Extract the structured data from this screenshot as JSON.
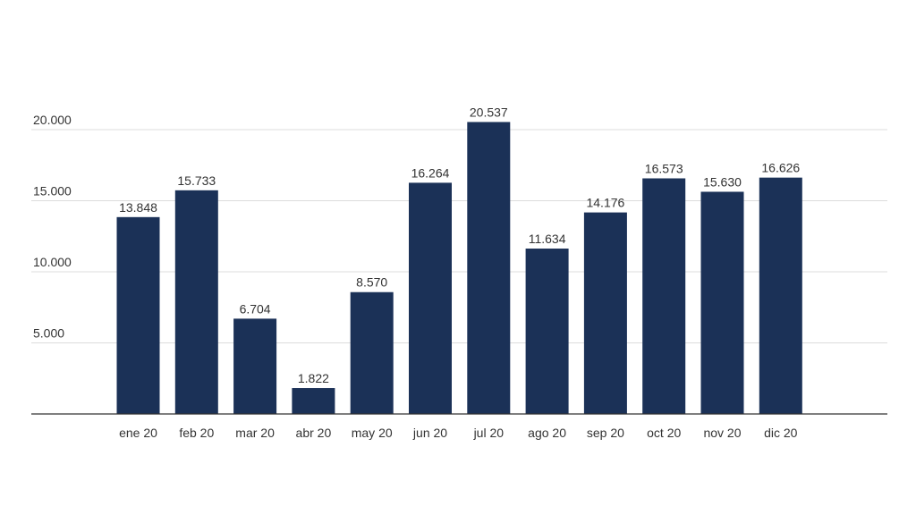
{
  "colors": {
    "bar": "#1b3157",
    "grid": "#dcdcdc",
    "axis": "#333333",
    "text": "#333333"
  },
  "chart_data": {
    "type": "bar",
    "categories": [
      "ene 20",
      "feb 20",
      "mar 20",
      "abr 20",
      "may 20",
      "jun 20",
      "jul 20",
      "ago 20",
      "sep 20",
      "oct 20",
      "nov 20",
      "dic 20"
    ],
    "values": [
      13848,
      15733,
      6704,
      1822,
      8570,
      16264,
      20537,
      11634,
      14176,
      16573,
      15630,
      16626
    ],
    "value_labels": [
      "13.848",
      "15.733",
      "6.704",
      "1.822",
      "8.570",
      "16.264",
      "20.537",
      "11.634",
      "14.176",
      "16.573",
      "15.630",
      "16.626"
    ],
    "yticks": [
      5000,
      10000,
      15000,
      20000
    ],
    "ytick_labels": [
      "5.000",
      "10.000",
      "15.000",
      "20.000"
    ],
    "ylim": [
      0,
      20000
    ],
    "grid": true,
    "legend": "none"
  }
}
